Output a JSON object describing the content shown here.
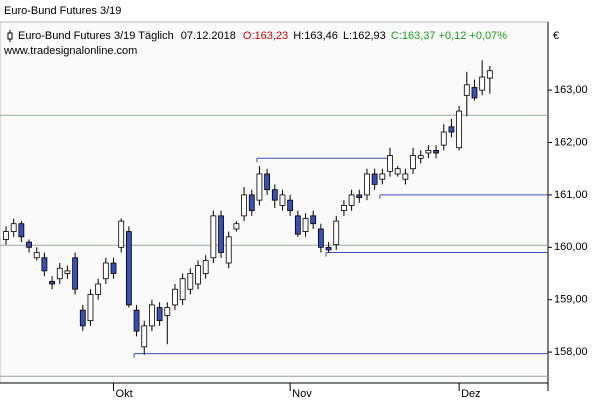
{
  "chart_data": {
    "type": "candlestick",
    "title": "Euro-Bund Futures 3/19",
    "legend_name": "Euro-Bund Futures 3/19 Täglich",
    "legend_date": "07.12.2018",
    "legend_open": "O:163,23",
    "legend_high": "H:163,46",
    "legend_low": "L:162,93",
    "legend_close": "C:163,37 +0,12 +0,07%",
    "source": "www.tradesignalonline.com",
    "currency": "€",
    "categories": [
      null,
      null,
      null,
      null,
      null,
      null,
      null,
      null,
      null,
      null,
      null,
      null,
      null,
      null,
      "Okt",
      null,
      null,
      null,
      null,
      null,
      null,
      null,
      null,
      null,
      null,
      null,
      null,
      null,
      null,
      null,
      null,
      null,
      null,
      null,
      null,
      null,
      null,
      "Nov",
      null,
      null,
      null,
      null,
      null,
      null,
      null,
      null,
      null,
      null,
      null,
      null,
      null,
      null,
      null,
      null,
      null,
      null,
      null,
      null,
      null,
      "Dez",
      null,
      null,
      null,
      null
    ],
    "open": [
      160.15,
      160.3,
      160.45,
      160.1,
      159.8,
      159.8,
      159.35,
      159.4,
      159.5,
      159.8,
      158.8,
      158.6,
      159.1,
      159.4,
      159.7,
      160.0,
      160.3,
      158.8,
      158.1,
      158.5,
      158.85,
      158.7,
      158.9,
      159.0,
      159.2,
      159.3,
      159.5,
      159.8,
      160.6,
      159.7,
      160.35,
      160.6,
      161.0,
      160.9,
      161.4,
      161.1,
      160.8,
      160.9,
      160.6,
      160.3,
      160.6,
      160.35,
      160.0,
      160.05,
      160.7,
      160.8,
      161.0,
      161.0,
      161.4,
      161.3,
      161.45,
      161.4,
      161.3,
      161.5,
      161.7,
      161.8,
      161.85,
      161.95,
      162.3,
      161.9,
      162.9,
      163.05,
      163.0,
      163.23
    ],
    "high": [
      160.4,
      160.55,
      160.5,
      160.15,
      160.0,
      159.9,
      159.45,
      159.7,
      159.65,
      159.9,
      158.9,
      159.2,
      159.4,
      159.8,
      159.8,
      160.55,
      160.4,
      158.9,
      158.6,
      159.0,
      158.95,
      158.95,
      159.3,
      159.5,
      159.6,
      159.75,
      159.85,
      160.7,
      160.7,
      160.3,
      160.5,
      161.15,
      161.1,
      161.55,
      161.5,
      161.2,
      161.1,
      161.0,
      160.7,
      160.65,
      160.7,
      160.45,
      160.1,
      160.6,
      160.9,
      161.1,
      161.1,
      161.5,
      161.5,
      161.5,
      161.9,
      161.55,
      161.5,
      161.9,
      161.85,
      161.95,
      161.95,
      162.35,
      162.45,
      162.7,
      163.35,
      163.2,
      163.57,
      163.46
    ],
    "low": [
      160.05,
      160.2,
      160.1,
      159.9,
      159.75,
      159.45,
      159.2,
      159.3,
      159.4,
      159.1,
      158.4,
      158.5,
      159.0,
      159.3,
      159.4,
      159.9,
      158.85,
      158.3,
      157.95,
      158.4,
      158.5,
      158.15,
      158.8,
      158.9,
      159.1,
      159.2,
      159.4,
      159.7,
      159.8,
      159.6,
      160.3,
      160.5,
      160.6,
      160.8,
      161.0,
      160.75,
      160.7,
      160.6,
      160.2,
      160.2,
      160.35,
      159.9,
      159.9,
      159.95,
      160.6,
      160.7,
      160.85,
      160.9,
      161.1,
      161.2,
      161.35,
      161.35,
      161.2,
      161.4,
      161.6,
      161.7,
      161.7,
      161.85,
      162.1,
      161.85,
      162.5,
      162.8,
      162.9,
      162.93
    ],
    "close": [
      160.3,
      160.45,
      160.2,
      160.0,
      159.9,
      159.55,
      159.3,
      159.6,
      159.55,
      159.2,
      158.5,
      159.1,
      159.3,
      159.7,
      159.5,
      160.5,
      158.9,
      158.4,
      158.5,
      158.9,
      158.6,
      158.85,
      159.2,
      159.4,
      159.5,
      159.65,
      159.75,
      160.6,
      159.9,
      160.2,
      160.45,
      161.0,
      160.7,
      161.4,
      161.1,
      160.9,
      161.0,
      160.7,
      160.25,
      160.55,
      160.45,
      160.0,
      159.95,
      160.5,
      160.8,
      161.0,
      160.95,
      161.4,
      161.2,
      161.4,
      161.75,
      161.5,
      161.4,
      161.75,
      161.75,
      161.85,
      161.8,
      162.2,
      162.2,
      162.6,
      163.1,
      162.85,
      163.25,
      163.37
    ],
    "up_color": "#ffffff",
    "down_color": "#3a4fb5",
    "levels": [
      {
        "value": 161.7,
        "start": 33,
        "end": 50
      },
      {
        "value": 161.0,
        "start": 49
      },
      {
        "value": 159.9,
        "start": 42
      },
      {
        "value": 157.97,
        "start": 17
      }
    ],
    "level_color": "#3a4fb5",
    "reference_lines": [
      162.52,
      160.04,
      157.54
    ],
    "reference_color": "#9aa89a",
    "ylim": [
      157.41,
      164.3
    ],
    "yticks": [
      {
        "value": 158,
        "label": "158,00"
      },
      {
        "value": 159,
        "label": "159,00"
      },
      {
        "value": 160,
        "label": "160,00"
      },
      {
        "value": 161,
        "label": "161,00"
      },
      {
        "value": 162,
        "label": "162,00"
      },
      {
        "value": 163,
        "label": "163,00"
      }
    ]
  }
}
